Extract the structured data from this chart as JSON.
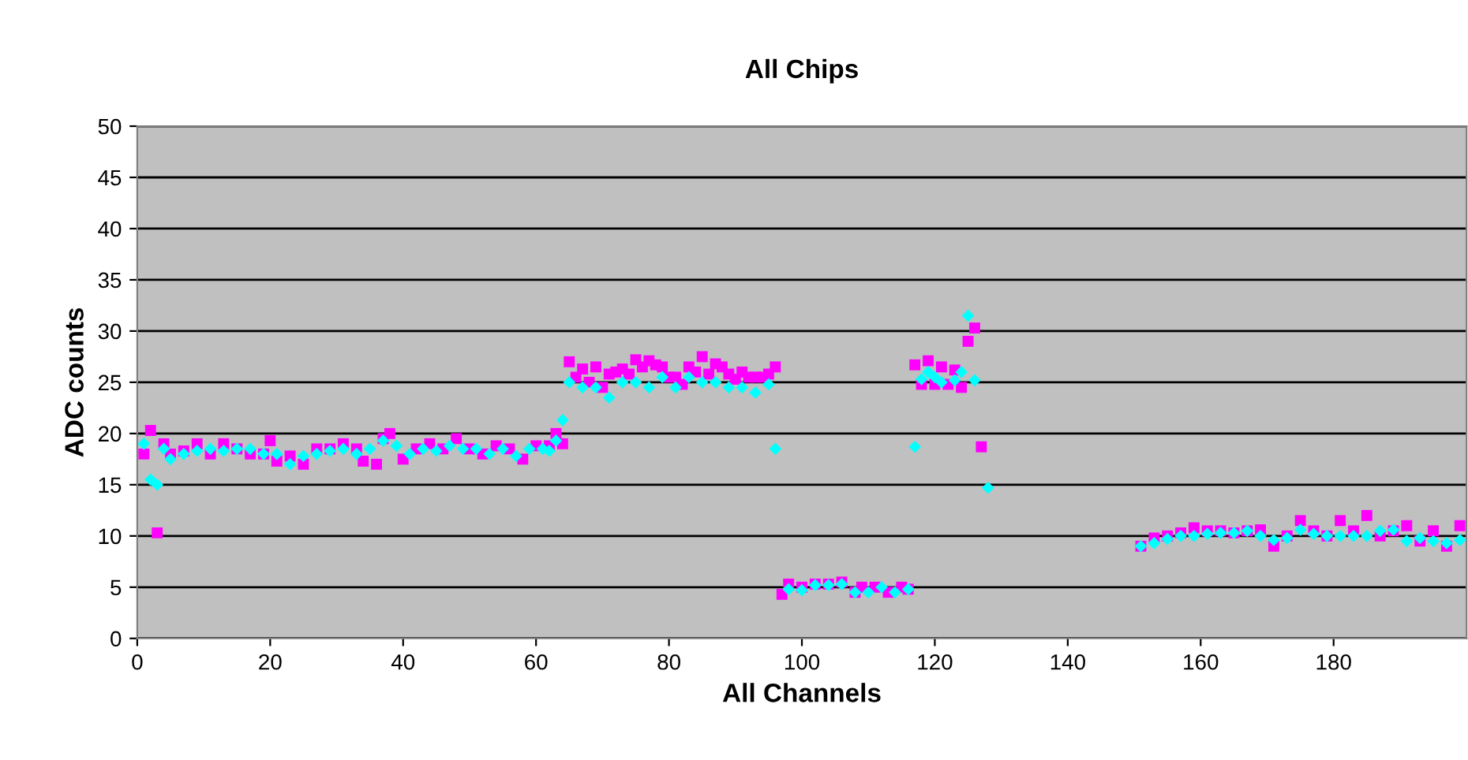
{
  "chart_data": {
    "type": "scatter",
    "title": "All Chips",
    "xlabel": "All Channels",
    "ylabel": "ADC counts",
    "xlim": [
      0,
      200
    ],
    "xticks": [
      0,
      20,
      40,
      60,
      80,
      100,
      120,
      140,
      160,
      180
    ],
    "ylim": [
      0,
      50
    ],
    "yticks": [
      0,
      5,
      10,
      15,
      20,
      25,
      30,
      35,
      40,
      45,
      50
    ],
    "grid": "y",
    "legend": false,
    "series": [
      {
        "color": "#ff00ff",
        "marker": "square",
        "x": [
          1,
          2,
          3,
          4,
          5,
          7,
          9,
          11,
          13,
          15,
          17,
          19,
          20,
          21,
          23,
          25,
          27,
          29,
          31,
          33,
          34,
          36,
          37,
          38,
          40,
          42,
          44,
          46,
          48,
          50,
          52,
          54,
          56,
          58,
          60,
          62,
          63,
          64,
          65,
          66,
          67,
          68,
          69,
          70,
          71,
          72,
          73,
          74,
          75,
          76,
          77,
          78,
          79,
          80,
          81,
          82,
          83,
          84,
          85,
          86,
          87,
          88,
          89,
          90,
          91,
          92,
          93,
          94,
          95,
          96,
          97,
          98,
          100,
          102,
          104,
          106,
          108,
          109,
          111,
          113,
          115,
          116,
          117,
          118,
          119,
          120,
          121,
          122,
          123,
          124,
          125,
          126,
          127,
          151,
          153,
          155,
          157,
          159,
          161,
          163,
          165,
          167,
          169,
          171,
          173,
          175,
          177,
          179,
          181,
          183,
          185,
          187,
          189,
          191,
          193,
          195,
          197,
          199
        ],
        "values": [
          18,
          20.3,
          10.3,
          19,
          18,
          18.3,
          19,
          18,
          19,
          18.5,
          18,
          18,
          19.3,
          17.3,
          17.8,
          17,
          18.5,
          18.5,
          19,
          18.5,
          17.3,
          17,
          19.5,
          20,
          17.5,
          18.5,
          19,
          18.5,
          19.5,
          18.5,
          18,
          18.8,
          18.5,
          17.5,
          18.8,
          18.8,
          20,
          19,
          27,
          25.5,
          26.3,
          25,
          26.5,
          24.5,
          25.8,
          26,
          26.3,
          25.8,
          27.2,
          26.5,
          27.1,
          26.7,
          26.5,
          25.5,
          25.5,
          24.8,
          26.5,
          26,
          27.5,
          25.8,
          26.8,
          26.5,
          25.8,
          25.3,
          26,
          25.5,
          25.5,
          25.5,
          25.8,
          26.5,
          4.3,
          5.3,
          5,
          5.3,
          5.3,
          5.5,
          4.5,
          5,
          5,
          4.5,
          5,
          4.8,
          26.7,
          24.8,
          27.1,
          24.8,
          26.5,
          24.8,
          26.2,
          24.5,
          29,
          30.3,
          18.7,
          9,
          9.8,
          10,
          10.3,
          10.8,
          10.5,
          10.5,
          10.3,
          10.5,
          10.6,
          9,
          10,
          11.5,
          10.5,
          10,
          11.5,
          10.5,
          12,
          10,
          10.5,
          11,
          9.5,
          10.5,
          9,
          11
        ]
      },
      {
        "color": "#00ffff",
        "marker": "diamond",
        "x": [
          1,
          2,
          3,
          4,
          5,
          7,
          9,
          11,
          13,
          15,
          17,
          19,
          21,
          23,
          25,
          27,
          29,
          31,
          33,
          35,
          37,
          39,
          41,
          43,
          45,
          47,
          49,
          51,
          53,
          55,
          57,
          59,
          61,
          62,
          63,
          64,
          65,
          67,
          69,
          71,
          73,
          75,
          77,
          79,
          81,
          83,
          85,
          87,
          89,
          91,
          93,
          95,
          96,
          98,
          100,
          102,
          104,
          106,
          108,
          110,
          112,
          114,
          116,
          117,
          118,
          119,
          120,
          121,
          123,
          124,
          125,
          126,
          128,
          151,
          153,
          155,
          157,
          159,
          161,
          163,
          165,
          167,
          169,
          171,
          173,
          175,
          177,
          179,
          181,
          183,
          185,
          187,
          189,
          191,
          193,
          195,
          197,
          199
        ],
        "values": [
          19,
          15.5,
          15,
          18.5,
          17.5,
          18,
          18.3,
          18.5,
          18.3,
          18.5,
          18.5,
          18,
          18,
          17,
          17.8,
          18,
          18.3,
          18.5,
          18,
          18.5,
          19.3,
          18.8,
          18,
          18.5,
          18.3,
          18.8,
          18.5,
          18.5,
          18,
          18.5,
          17.8,
          18.5,
          18.5,
          18.3,
          19.3,
          21.3,
          25,
          24.5,
          24.5,
          23.5,
          25,
          25,
          24.5,
          25.5,
          24.5,
          25.5,
          25,
          25,
          24.5,
          24.5,
          24,
          24.8,
          18.5,
          4.8,
          4.7,
          5.2,
          5.2,
          5.3,
          4.5,
          4.5,
          5,
          4.5,
          4.8,
          18.7,
          25.3,
          26,
          25.5,
          25,
          25.2,
          26,
          31.5,
          25.2,
          14.7,
          9,
          9.3,
          9.7,
          10,
          10,
          10.2,
          10.3,
          10.3,
          10.5,
          10,
          9.6,
          9.8,
          10.6,
          10.2,
          10,
          10,
          10,
          10,
          10.5,
          10.6,
          9.5,
          9.8,
          9.5,
          9.3,
          9.6
        ]
      }
    ]
  }
}
